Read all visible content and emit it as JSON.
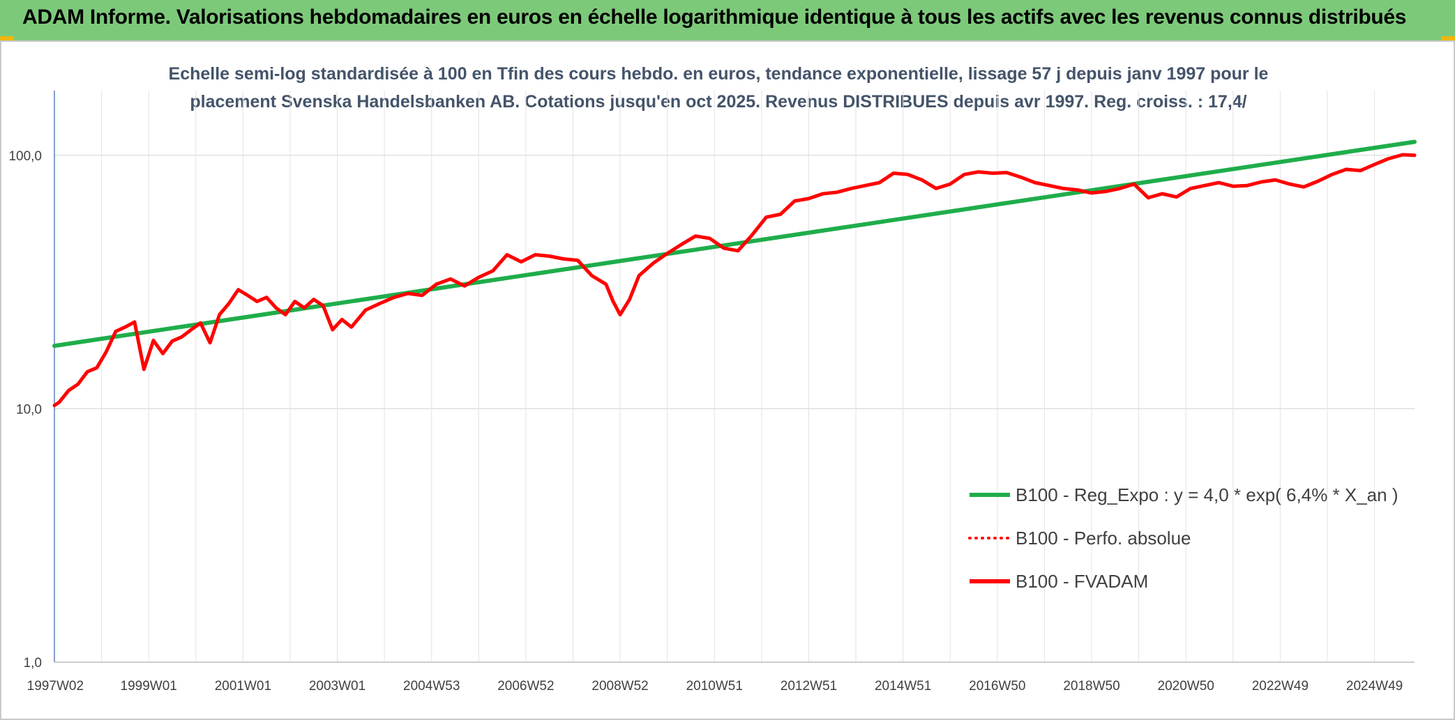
{
  "header": {
    "title": "ADAM Informe. Valorisations hebdomadaires en euros en échelle logarithmique identique à tous les actifs avec les revenus connus distribués"
  },
  "chart_data": {
    "type": "line",
    "title_line1": "Echelle semi-log standardisée à 100 en Tfin des cours hebdo. en euros, tendance exponentielle, lissage 57 j depuis janv 1997 pour le",
    "title_line2": "placement Svenska Handelsbanken AB. Cotations jusqu'en oct 2025. Revenus DISTRIBUES depuis avr 1997. Reg. croiss. : 17,4/",
    "y_scale": "log",
    "ylim": [
      1,
      180
    ],
    "xlim": [
      1997.0,
      2025.85
    ],
    "grid": true,
    "legend_position": "bottom-right",
    "y_ticks": [
      {
        "value": 1,
        "label": "1,0"
      },
      {
        "value": 10,
        "label": "10,0"
      },
      {
        "value": 100,
        "label": "100,0"
      }
    ],
    "x_ticks": [
      {
        "value": 1997.02,
        "label": "1997W02"
      },
      {
        "value": 1999.0,
        "label": "1999W01"
      },
      {
        "value": 2001.0,
        "label": "2001W01"
      },
      {
        "value": 2003.0,
        "label": "2003W01"
      },
      {
        "value": 2005.0,
        "label": "2004W53"
      },
      {
        "value": 2007.0,
        "label": "2006W52"
      },
      {
        "value": 2009.0,
        "label": "2008W52"
      },
      {
        "value": 2011.0,
        "label": "2010W51"
      },
      {
        "value": 2013.0,
        "label": "2012W51"
      },
      {
        "value": 2015.0,
        "label": "2014W51"
      },
      {
        "value": 2017.0,
        "label": "2016W50"
      },
      {
        "value": 2019.0,
        "label": "2018W50"
      },
      {
        "value": 2021.0,
        "label": "2020W50"
      },
      {
        "value": 2023.0,
        "label": "2022W49"
      },
      {
        "value": 2025.0,
        "label": "2024W49"
      }
    ],
    "series": [
      {
        "name": "B100 - Reg_Expo : y = 4,0 * exp( 6,4% *  X_an )",
        "color": "#1fad4b",
        "style": "solid",
        "x": [
          1997.0,
          2025.85
        ],
        "y": [
          17.7,
          113
        ]
      },
      {
        "name": "B100 - Perfo. absolue",
        "color": "#ff0000",
        "style": "dotted",
        "x": [],
        "y": []
      },
      {
        "name": "B100 - FVADAM",
        "color": "#ff0000",
        "style": "solid",
        "x": [
          1997.0,
          1997.1,
          1997.3,
          1997.5,
          1997.7,
          1997.9,
          1998.1,
          1998.3,
          1998.5,
          1998.7,
          1998.9,
          1999.1,
          1999.3,
          1999.5,
          1999.7,
          1999.9,
          2000.1,
          2000.3,
          2000.5,
          2000.7,
          2000.9,
          2001.1,
          2001.3,
          2001.5,
          2001.7,
          2001.9,
          2002.1,
          2002.3,
          2002.5,
          2002.7,
          2002.9,
          2003.1,
          2003.3,
          2003.6,
          2003.9,
          2004.2,
          2004.5,
          2004.8,
          2005.1,
          2005.4,
          2005.7,
          2006.0,
          2006.3,
          2006.6,
          2006.9,
          2007.2,
          2007.5,
          2007.8,
          2008.1,
          2008.4,
          2008.7,
          2008.85,
          2009.0,
          2009.2,
          2009.4,
          2009.7,
          2010.0,
          2010.3,
          2010.6,
          2010.9,
          2011.2,
          2011.5,
          2011.8,
          2012.1,
          2012.4,
          2012.7,
          2013.0,
          2013.3,
          2013.6,
          2013.9,
          2014.2,
          2014.5,
          2014.8,
          2015.1,
          2015.4,
          2015.7,
          2016.0,
          2016.3,
          2016.6,
          2016.9,
          2017.2,
          2017.5,
          2017.8,
          2018.1,
          2018.4,
          2018.7,
          2019.0,
          2019.3,
          2019.6,
          2019.9,
          2020.2,
          2020.5,
          2020.8,
          2021.1,
          2021.4,
          2021.7,
          2022.0,
          2022.3,
          2022.6,
          2022.9,
          2023.2,
          2023.5,
          2023.8,
          2024.1,
          2024.4,
          2024.7,
          2025.0,
          2025.3,
          2025.6,
          2025.85
        ],
        "y": [
          10.3,
          10.6,
          11.8,
          12.5,
          14.0,
          14.5,
          16.8,
          20.2,
          21.0,
          22.0,
          14.3,
          18.6,
          16.5,
          18.5,
          19.2,
          20.5,
          21.8,
          18.2,
          23.5,
          26.0,
          29.5,
          28.0,
          26.5,
          27.5,
          25.0,
          23.5,
          26.5,
          25.0,
          27.0,
          25.5,
          20.5,
          22.5,
          21.0,
          24.5,
          26.0,
          27.5,
          28.5,
          28.0,
          31.0,
          32.5,
          30.5,
          33.0,
          35.0,
          40.5,
          38.0,
          40.5,
          40.0,
          39.0,
          38.5,
          33.5,
          31.0,
          26.5,
          23.5,
          27.0,
          33.5,
          37.5,
          41.0,
          44.5,
          48.0,
          47.0,
          43.0,
          42.0,
          48.5,
          57.0,
          58.5,
          66.0,
          67.5,
          70.5,
          71.5,
          74.0,
          76.0,
          78.0,
          85.0,
          84.0,
          80.0,
          74.0,
          77.0,
          84.0,
          86.0,
          85.0,
          85.5,
          82.0,
          78.0,
          76.0,
          74.0,
          73.0,
          71.0,
          72.0,
          74.0,
          77.0,
          68.0,
          70.5,
          68.5,
          74.0,
          76.0,
          78.0,
          75.5,
          76.0,
          78.5,
          80.0,
          77.0,
          75.0,
          79.0,
          84.0,
          88.0,
          87.0,
          92.0,
          97.0,
          100.5,
          100.0
        ]
      }
    ]
  }
}
